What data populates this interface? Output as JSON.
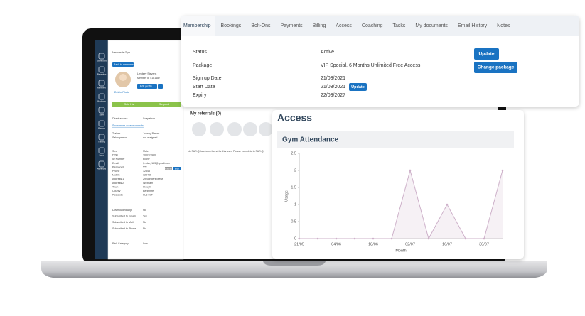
{
  "tabs": [
    "Membership",
    "Bookings",
    "Bolt-Ons",
    "Payments",
    "Billing",
    "Access",
    "Coaching",
    "Tasks",
    "My documents",
    "Email History",
    "Notes"
  ],
  "membership": {
    "fields": [
      {
        "label": "Status",
        "value": "Active"
      },
      {
        "label": "Package",
        "value": "VIP Special, 6 Months Unlimited Free Access"
      },
      {
        "label": "Sign up Date",
        "value": "21/03/2021"
      },
      {
        "label": "Start Date",
        "value": "21/03/2021"
      },
      {
        "label": "Expiry",
        "value": "22/03/2027"
      }
    ],
    "inline_button": "Update",
    "buttons": [
      "Update",
      "Change package"
    ]
  },
  "access_title": "Access",
  "chart_data": {
    "type": "line",
    "title": "Gym Attendance",
    "ylabel": "Usage",
    "xlabel": "Month",
    "categories": [
      "21/05",
      null,
      "04/06",
      null,
      "18/06",
      null,
      "02/07",
      null,
      "16/07",
      null,
      "30/07",
      null
    ],
    "values": [
      0,
      0,
      0,
      0,
      0,
      0,
      2,
      0,
      1,
      0,
      0,
      2
    ],
    "color": "#cdb0c9",
    "ylim": [
      0,
      2.5
    ],
    "yticks": [
      0,
      0.5,
      1,
      1.5,
      2,
      2.5
    ],
    "grid": false
  },
  "referrals": {
    "title": "My referrals (0)",
    "parq_note": "No PAR-Q has been found for this user. Please complete to PAR-Q"
  },
  "sidebar": [
    "Dashboard",
    "Reception",
    "Members",
    "Bookings",
    "Sales",
    "Reports",
    "Training",
    "Setup",
    "Advanced"
  ],
  "profile": {
    "gym": "Newcastle Gym",
    "back": "Back to members list",
    "name": "Lyndsey Stevens",
    "member_no": "Member #: 4181487",
    "edit": "Edit profile",
    "photo_link": "Delete Photo",
    "actions": [
      "Sale Hist",
      "Suspend"
    ],
    "direct": {
      "label": "Direct access",
      "value": "Scapathon"
    },
    "more": "Show more access controls",
    "staff": [
      {
        "label": "Trainer",
        "value": "Johnny Parker"
      },
      {
        "label": "Sales person",
        "value": "not assigned"
      }
    ],
    "details": [
      {
        "label": "Sex",
        "value": "Male"
      },
      {
        "label": "DOB",
        "value": "30/01/1980"
      },
      {
        "label": "ID Number",
        "value": "60597"
      },
      {
        "label": "Email",
        "value": "lyndsey123@gmail.com"
      },
      {
        "label": "Password",
        "value": "****"
      },
      {
        "label": "Phone",
        "value": "12345"
      },
      {
        "label": "Mobile",
        "value": "123456"
      },
      {
        "label": "Address 1",
        "value": "29 Sunders Mews"
      },
      {
        "label": "Address 2",
        "value": "Wexham"
      },
      {
        "label": "Town",
        "value": "Slough"
      },
      {
        "label": "County",
        "value": "Berkshire"
      },
      {
        "label": "Postcode",
        "value": "SL3 6ST"
      }
    ],
    "pw_buttons": [
      "Reset",
      "Edit"
    ],
    "prefs": [
      {
        "label": "Downloaded App",
        "value": "No"
      },
      {
        "label": "Subscribed to Emails",
        "value": "Yes"
      },
      {
        "label": "Subscribed to Mail",
        "value": "No"
      },
      {
        "label": "Subscribed to Phone",
        "value": "No"
      }
    ],
    "risk": {
      "label": "Risk Category",
      "value": "Low"
    }
  }
}
